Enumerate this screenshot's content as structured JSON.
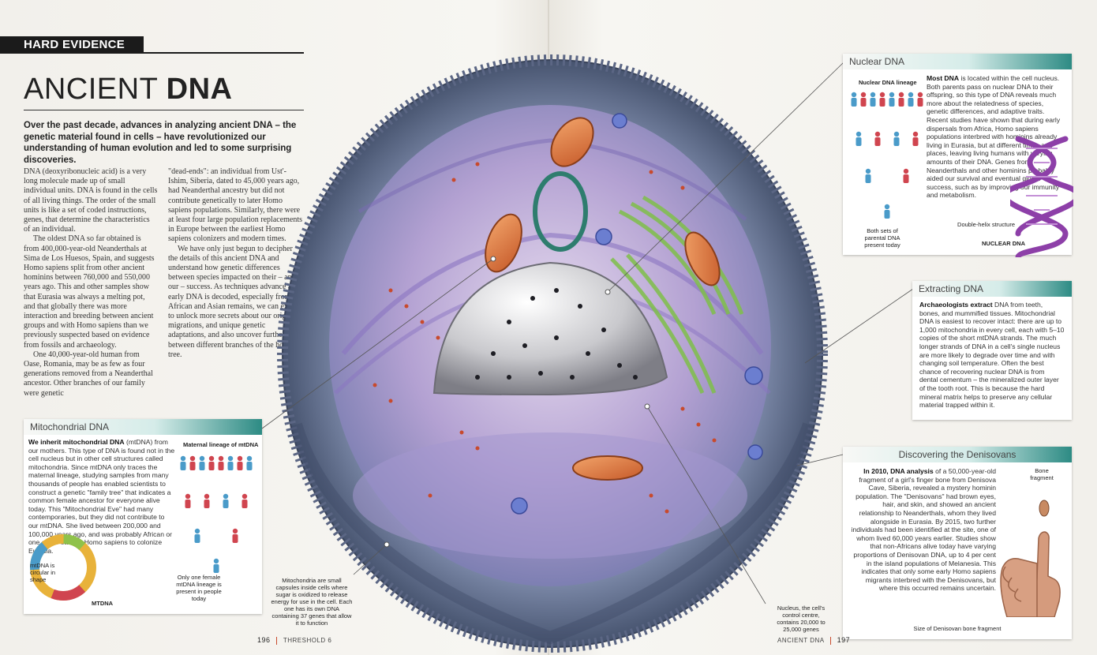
{
  "badge": "HARD EVIDENCE",
  "title": {
    "light": "ANCIENT ",
    "bold": "DNA"
  },
  "intro": "Over the past decade, advances in analyzing ancient DNA – the genetic material found in cells – have revolutionized our understanding of human evolution and led to some surprising discoveries.",
  "body": {
    "col1": [
      "DNA (deoxyribonucleic acid) is a very long molecule made up of small individual units. DNA is found in the cells of all living things. The order of the small units is like a set of coded instructions, genes, that determine the characteristics of an individual.",
      "The oldest DNA so far obtained is from 400,000-year-old Neanderthals at Sima de Los Huesos, Spain, and suggests Homo sapiens split from other ancient hominins between 760,000 and 550,000 years ago. This and other samples show that Eurasia was always a melting pot, and that globally there was more interaction and breeding between ancient groups and with Homo sapiens than we previously suspected based on evidence from fossils and archaeology.",
      "One 40,000-year-old human from Oase, Romania, may be as few as four generations removed from a Neanderthal ancestor. Other branches of our family were genetic"
    ],
    "col2": [
      "\"dead-ends\": an individual from Ust'-Ishim, Siberia, dated to 45,000 years ago, had Neanderthal ancestry but did not contribute genetically to later Homo sapiens populations. Similarly, there were at least four large population replacements in Europe between the earliest Homo sapiens colonizers and modern times.",
      "We have only just begun to decipher the details of this ancient DNA and understand how genetic differences between species impacted on their – and our – success. As techniques advance and early DNA is decoded, especially from African and Asian remains, we can expect to unlock more secrets about our origins, migrations, and unique genetic adaptations, and also uncover further links between different branches of the hominin tree."
    ]
  },
  "nuclear": {
    "head": "Nuclear DNA",
    "lineage_label": "Nuclear DNA lineage",
    "lead": "Most DNA",
    "text": " is located within the cell nucleus. Both parents pass on nuclear DNA to their offspring, so this type of DNA reveals much more about the relatedness of species, genetic differences, and adaptive traits. Recent studies have shown that during early dispersals from Africa, Homo sapiens populations interbred with hominins already living in Eurasia, but at different times and places, leaving living humans with varying amounts of their DNA. Genes from Neanderthals and other hominins probably aided our survival and eventual global success, such as by improving our immunity and metabolism.",
    "both_sets": "Both sets of parental DNA present today",
    "helix_label": "Double-helix structure",
    "caption": "NUCLEAR DNA"
  },
  "extracting": {
    "head": "Extracting DNA",
    "lead": "Archaeologists extract",
    "text": " DNA from teeth, bones, and mummified tissues. Mitochondrial DNA is easiest to recover intact: there are up to 1,000 mitochondria in every cell, each with 5–10 copies of the short mtDNA strands. The much longer strands of DNA in a cell's single nucleus are more likely to degrade over time and with changing soil temperature. Often the best chance of recovering nuclear DNA is from dental cementum – the mineralized outer layer of the tooth root. This is because the hard mineral matrix helps to preserve any cellular material trapped within it."
  },
  "denisovans": {
    "head": "Discovering the Denisovans",
    "lead": "In 2010, DNA analysis",
    "text": " of a 50,000-year-old fragment of a girl's finger bone from Denisova Cave, Siberia, revealed a mystery hominin population. The \"Denisovans\" had brown eyes, hair, and skin, and showed an ancient relationship to Neanderthals, whom they lived alongside in Eurasia. By 2015, two further individuals had been identified at the site, one of whom lived 60,000 years earlier. Studies show that non-Africans alive today have varying proportions of Denisovan DNA, up to 4 per cent in the island populations of Melanesia. This indicates that only some early Homo sapiens migrants interbred with the Denisovans, but where this occurred remains uncertain.",
    "bone_label": "Bone fragment",
    "caption": "Size of Denisovan bone fragment"
  },
  "mito": {
    "head": "Mitochondrial DNA",
    "lead": "We inherit mitochondrial DNA",
    "text": " (mtDNA) from our mothers. This type of DNA is found not in the cell nucleus but in other cell structures called mitochondria. Since mtDNA only traces the maternal lineage, studying samples from many thousands of people has enabled scientists to construct a genetic \"family tree\" that indicates a common female ancestor for everyone alive today. This \"Mitochondrial Eve\" had many contemporaries, but they did not contribute to our mtDNA. She lived between 200,000 and 100,000 years ago, and was probably African or one of the earliest Homo sapiens to colonize Eurasia.",
    "lineage_label": "Maternal lineage of mtDNA",
    "ring_label": "mtDNA is circular in shape",
    "caption": "MTDNA",
    "only_one": "Only one female mtDNA lineage is present in people today"
  },
  "callouts": {
    "mito": "Mitochondria are small capsules inside cells where sugar is oxidized to release energy for use in the cell. Each one has its own DNA containing 37 genes that allow it to function",
    "nucleus": "Nucleus, the cell's control centre, contains 20,000 to 25,000 genes"
  },
  "folio": {
    "left_num": "196",
    "left_text": "THRESHOLD 6",
    "right_text": "ANCIENT DNA",
    "right_num": "197"
  },
  "colors": {
    "teal": "#2d8b84",
    "male": "#4a9bc9",
    "female": "#d0454f"
  }
}
